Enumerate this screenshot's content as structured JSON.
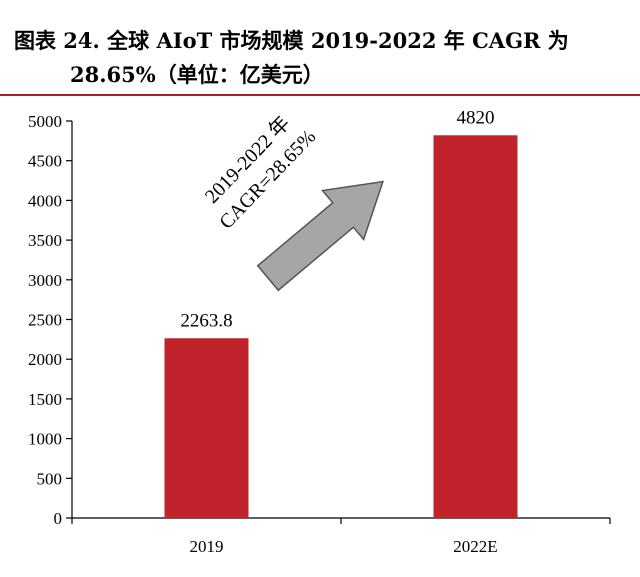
{
  "figure": {
    "title_line1": "图表 24. 全球 AIoT 市场规模 2019-2022 年 CAGR 为",
    "title_line2": "28.65%（单位：亿美元）",
    "accent_color": "#b01c28"
  },
  "chart_data": {
    "type": "bar",
    "categories": [
      "2019",
      "2022E"
    ],
    "values": [
      2263.8,
      4820
    ],
    "data_labels": [
      "2263.8",
      "4820"
    ],
    "ylim": [
      0,
      5000
    ],
    "yticks": [
      0,
      500,
      1000,
      1500,
      2000,
      2500,
      3000,
      3500,
      4000,
      4500,
      5000
    ],
    "bar_color": "#c0232c",
    "grid": false,
    "annotation": {
      "line1": "2019-2022 年",
      "line2": "CAGR=28.65%",
      "arrow_color": "#a6a6a6"
    }
  }
}
